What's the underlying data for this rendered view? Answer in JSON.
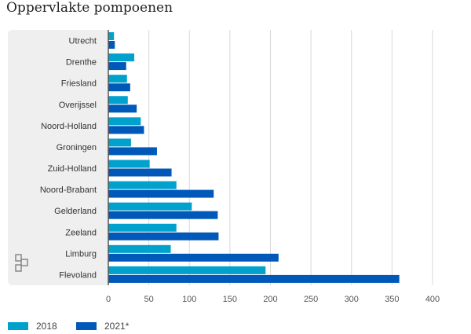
{
  "chart_data": {
    "type": "bar",
    "orientation": "horizontal",
    "title": "Oppervlakte pompoenen",
    "categories": [
      "Utrecht",
      "Drenthe",
      "Friesland",
      "Overijssel",
      "Noord-Holland",
      "Groningen",
      "Zuid-Holland",
      "Noord-Brabant",
      "Gelderland",
      "Zeeland",
      "Limburg",
      "Flevoland"
    ],
    "series": [
      {
        "name": "2018",
        "color": "#00a1cd",
        "values": [
          7,
          32,
          23,
          24,
          40,
          28,
          51,
          84,
          103,
          84,
          77,
          194
        ]
      },
      {
        "name": "2021*",
        "color": "#0058b8",
        "values": [
          8,
          22,
          27,
          35,
          44,
          60,
          78,
          130,
          135,
          136,
          210,
          359
        ]
      }
    ],
    "xlim": [
      0,
      400
    ],
    "xticks": [
      "0",
      "50",
      "100",
      "150",
      "200",
      "250",
      "300",
      "350",
      "400"
    ],
    "grid": true,
    "legend_position": "bottom-left",
    "xlabel": "",
    "ylabel": ""
  }
}
